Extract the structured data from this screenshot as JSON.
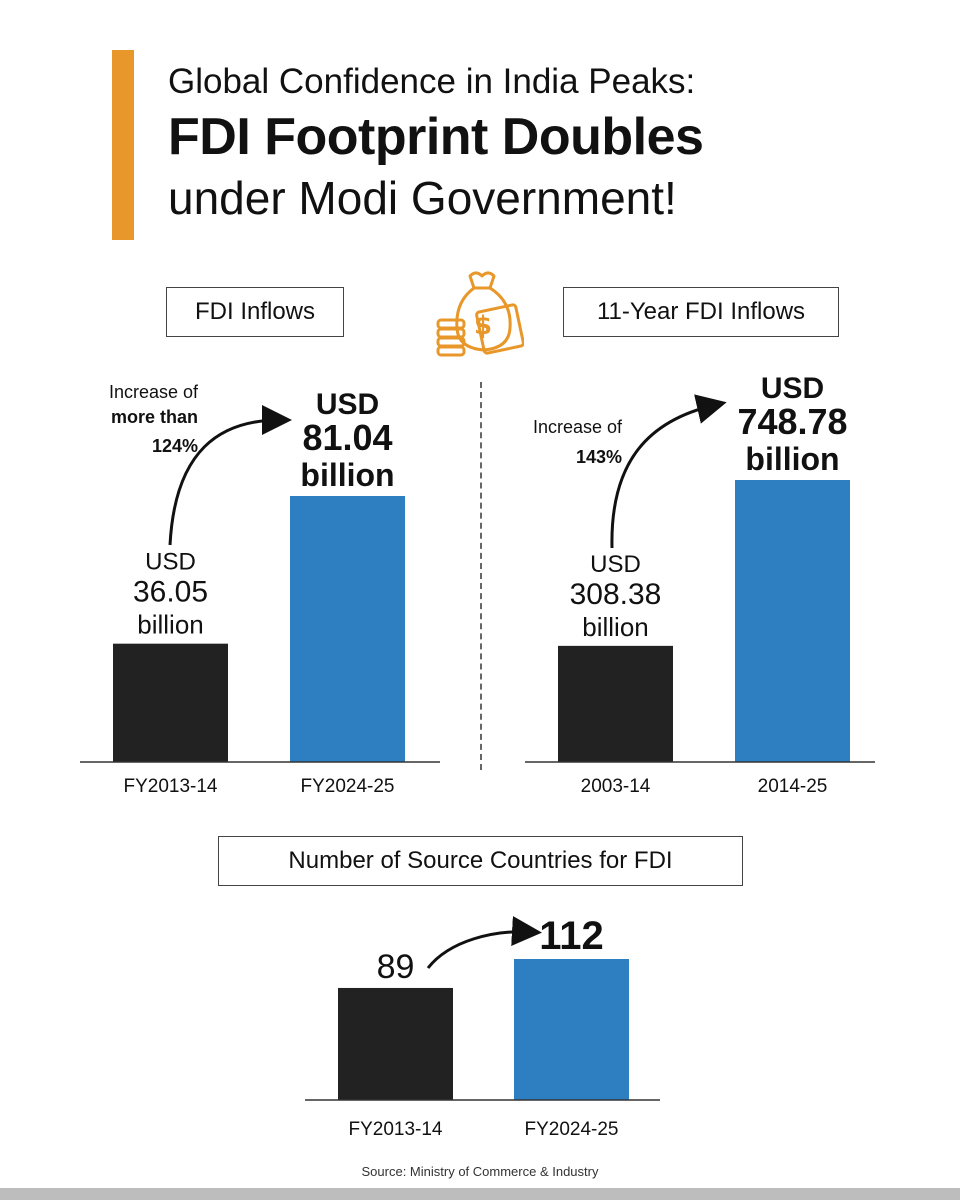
{
  "title": {
    "line1": "Global Confidence in India Peaks:",
    "line2": "FDI Footprint Doubles",
    "line3": "under Modi Government!"
  },
  "colors": {
    "accent": "#e8972a",
    "dark_bar": "#222222",
    "blue_bar": "#2d7fc1",
    "icon": "#e8972a"
  },
  "icon": "money-bag-coins-icon",
  "source": "Source: Ministry of Commerce & Industry",
  "chart_data": [
    {
      "type": "bar",
      "title": "FDI Inflows",
      "categories": [
        "FY2013-14",
        "FY2024-25"
      ],
      "values": [
        36.05,
        81.04
      ],
      "value_labels": [
        [
          "USD",
          "36.05",
          "billion"
        ],
        [
          "USD",
          "81.04",
          "billion"
        ]
      ],
      "annotation": [
        "Increase of",
        "more than",
        "124%"
      ],
      "ylim": [
        0,
        100
      ]
    },
    {
      "type": "bar",
      "title": "11-Year FDI Inflows",
      "categories": [
        "2003-14",
        "2014-25"
      ],
      "values": [
        308.38,
        748.78
      ],
      "value_labels": [
        [
          "USD",
          "308.38",
          "billion"
        ],
        [
          "USD",
          "748.78",
          "billion"
        ]
      ],
      "annotation": [
        "Increase of",
        "143%"
      ],
      "ylim": [
        0,
        900
      ]
    },
    {
      "type": "bar",
      "title": "Number of Source Countries for FDI",
      "categories": [
        "FY2013-14",
        "FY2024-25"
      ],
      "values": [
        89,
        112
      ],
      "value_labels": [
        [
          "89"
        ],
        [
          "112"
        ]
      ],
      "ylim": [
        0,
        120
      ]
    }
  ]
}
